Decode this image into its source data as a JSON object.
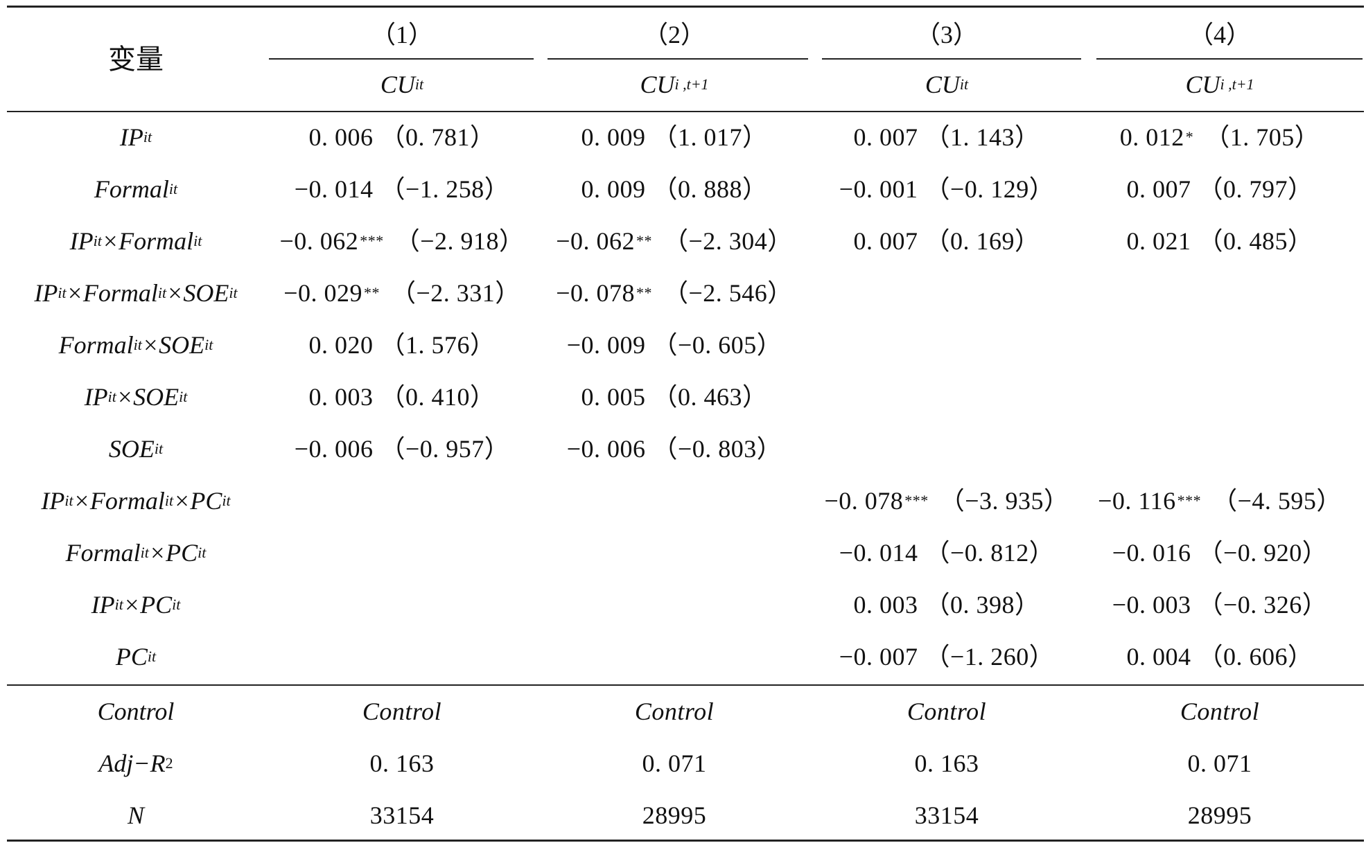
{
  "header": {
    "variable_label": "变量",
    "column_numbers": [
      "（1）",
      "（2）",
      "（3）",
      "（4）"
    ],
    "column_dep": [
      {
        "main": "CU",
        "sub": "it"
      },
      {
        "main": "CU",
        "sub": "i ,t+1"
      },
      {
        "main": "CU",
        "sub": "it"
      },
      {
        "main": "CU",
        "sub": "i ,t+1"
      }
    ]
  },
  "rows": [
    {
      "var_parts": [
        {
          "t": "IP",
          "s": "it"
        }
      ],
      "cells": [
        {
          "coef": "0. 006",
          "stars": "",
          "t": "（0. 781）"
        },
        {
          "coef": "0. 009",
          "stars": "",
          "t": "（1. 017）"
        },
        {
          "coef": "0. 007",
          "stars": "",
          "t": "（1. 143）"
        },
        {
          "coef": "0. 012",
          "stars": "*",
          "t": "（1. 705）"
        }
      ]
    },
    {
      "var_parts": [
        {
          "t": "Formal",
          "s": "it"
        }
      ],
      "cells": [
        {
          "coef": "−0. 014",
          "stars": "",
          "t": "（−1. 258）"
        },
        {
          "coef": "0. 009",
          "stars": "",
          "t": "（0. 888）"
        },
        {
          "coef": "−0. 001",
          "stars": "",
          "t": "（−0. 129）"
        },
        {
          "coef": "0. 007",
          "stars": "",
          "t": "（0. 797）"
        }
      ]
    },
    {
      "var_parts": [
        {
          "t": "IP",
          "s": "it"
        },
        {
          "t": "×Formal",
          "s": "it"
        }
      ],
      "cells": [
        {
          "coef": "−0. 062",
          "stars": "***",
          "t": "（−2. 918）"
        },
        {
          "coef": "−0. 062",
          "stars": "**",
          "t": "（−2. 304）"
        },
        {
          "coef": "0. 007",
          "stars": "",
          "t": "（0. 169）"
        },
        {
          "coef": "0. 021",
          "stars": "",
          "t": "（0. 485）"
        }
      ]
    },
    {
      "var_parts": [
        {
          "t": "IP",
          "s": "it"
        },
        {
          "t": "×Formal",
          "s": "it"
        },
        {
          "t": "×SOE",
          "s": "it"
        }
      ],
      "cells": [
        {
          "coef": "−0. 029",
          "stars": "**",
          "t": "（−2. 331）"
        },
        {
          "coef": "−0. 078",
          "stars": "**",
          "t": "（−2. 546）"
        },
        null,
        null
      ]
    },
    {
      "var_parts": [
        {
          "t": "Formal",
          "s": "it"
        },
        {
          "t": "×SOE",
          "s": "it"
        }
      ],
      "cells": [
        {
          "coef": "0. 020",
          "stars": "",
          "t": "（1. 576）"
        },
        {
          "coef": "−0. 009",
          "stars": "",
          "t": "（−0. 605）"
        },
        null,
        null
      ]
    },
    {
      "var_parts": [
        {
          "t": "IP",
          "s": "it"
        },
        {
          "t": "×SOE",
          "s": "it"
        }
      ],
      "cells": [
        {
          "coef": "0. 003",
          "stars": "",
          "t": "（0. 410）"
        },
        {
          "coef": "0. 005",
          "stars": "",
          "t": "（0. 463）"
        },
        null,
        null
      ]
    },
    {
      "var_parts": [
        {
          "t": "SOE",
          "s": "it"
        }
      ],
      "cells": [
        {
          "coef": "−0. 006",
          "stars": "",
          "t": "（−0. 957）"
        },
        {
          "coef": "−0. 006",
          "stars": "",
          "t": "（−0. 803）"
        },
        null,
        null
      ]
    },
    {
      "var_parts": [
        {
          "t": "IP",
          "s": "it"
        },
        {
          "t": "×Formal",
          "s": "it"
        },
        {
          "t": "×PC",
          "s": "it"
        }
      ],
      "cells": [
        null,
        null,
        {
          "coef": "−0. 078",
          "stars": "***",
          "t": "（−3. 935）"
        },
        {
          "coef": "−0. 116",
          "stars": "***",
          "t": "（−4. 595）"
        }
      ]
    },
    {
      "var_parts": [
        {
          "t": "Formal",
          "s": "it"
        },
        {
          "t": "×PC",
          "s": "it"
        }
      ],
      "cells": [
        null,
        null,
        {
          "coef": "−0. 014",
          "stars": "",
          "t": "（−0. 812）"
        },
        {
          "coef": "−0. 016",
          "stars": "",
          "t": "（−0. 920）"
        }
      ]
    },
    {
      "var_parts": [
        {
          "t": "IP",
          "s": "it"
        },
        {
          "t": "×PC",
          "s": "it"
        }
      ],
      "cells": [
        null,
        null,
        {
          "coef": "0. 003",
          "stars": "",
          "t": "（0. 398）"
        },
        {
          "coef": "−0. 003",
          "stars": "",
          "t": "（−0. 326）"
        }
      ]
    },
    {
      "var_parts": [
        {
          "t": "PC",
          "s": "it"
        }
      ],
      "cells": [
        null,
        null,
        {
          "coef": "−0. 007",
          "stars": "",
          "t": "（−1. 260）"
        },
        {
          "coef": "0. 004",
          "stars": "",
          "t": "（0. 606）"
        }
      ]
    }
  ],
  "footer": [
    {
      "label": "Control",
      "label_sup": "",
      "italic": true,
      "values": [
        "Control",
        "Control",
        "Control",
        "Control"
      ],
      "values_italic": true
    },
    {
      "label": "Adj−R",
      "label_sup": "2",
      "italic": true,
      "values": [
        "0. 163",
        "0. 071",
        "0. 163",
        "0. 071"
      ],
      "values_italic": false
    },
    {
      "label": "N",
      "label_sup": "",
      "italic": true,
      "values": [
        "33154",
        "28995",
        "33154",
        "28995"
      ],
      "values_italic": false
    }
  ]
}
